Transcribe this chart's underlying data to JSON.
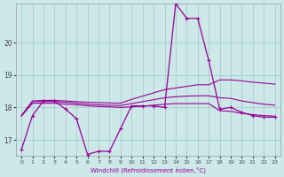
{
  "xlabel": "Windchill (Refroidissement éolien,°C)",
  "background_color": "#cce8e8",
  "grid_color": "#aacccc",
  "line_color": "#990099",
  "x_ticks": [
    0,
    1,
    2,
    3,
    4,
    5,
    6,
    7,
    8,
    9,
    10,
    11,
    12,
    13,
    14,
    15,
    16,
    17,
    18,
    19,
    20,
    21,
    22,
    23
  ],
  "y_ticks": [
    17,
    18,
    19,
    20
  ],
  "ylim": [
    16.5,
    21.2
  ],
  "xlim": [
    -0.5,
    23.5
  ],
  "main_line": [
    16.7,
    17.75,
    18.2,
    18.2,
    17.95,
    17.65,
    16.55,
    16.65,
    16.65,
    17.35,
    18.05,
    18.05,
    18.05,
    18.0,
    21.2,
    20.75,
    20.75,
    19.45,
    17.95,
    18.0,
    17.85,
    17.75,
    17.7,
    17.7
  ],
  "line2": [
    17.75,
    18.2,
    18.22,
    18.22,
    18.2,
    18.18,
    18.16,
    18.15,
    18.14,
    18.13,
    18.25,
    18.35,
    18.45,
    18.55,
    18.6,
    18.65,
    18.7,
    18.7,
    18.85,
    18.85,
    18.82,
    18.78,
    18.75,
    18.72
  ],
  "line3": [
    17.75,
    18.18,
    18.18,
    18.18,
    18.16,
    18.13,
    18.1,
    18.08,
    18.07,
    18.06,
    18.12,
    18.18,
    18.24,
    18.3,
    18.33,
    18.35,
    18.36,
    18.36,
    18.3,
    18.28,
    18.2,
    18.15,
    18.1,
    18.07
  ],
  "line4": [
    17.73,
    18.13,
    18.13,
    18.13,
    18.1,
    18.08,
    18.05,
    18.03,
    18.02,
    18.0,
    18.02,
    18.04,
    18.07,
    18.1,
    18.12,
    18.12,
    18.12,
    18.12,
    17.9,
    17.88,
    17.82,
    17.78,
    17.75,
    17.73
  ]
}
